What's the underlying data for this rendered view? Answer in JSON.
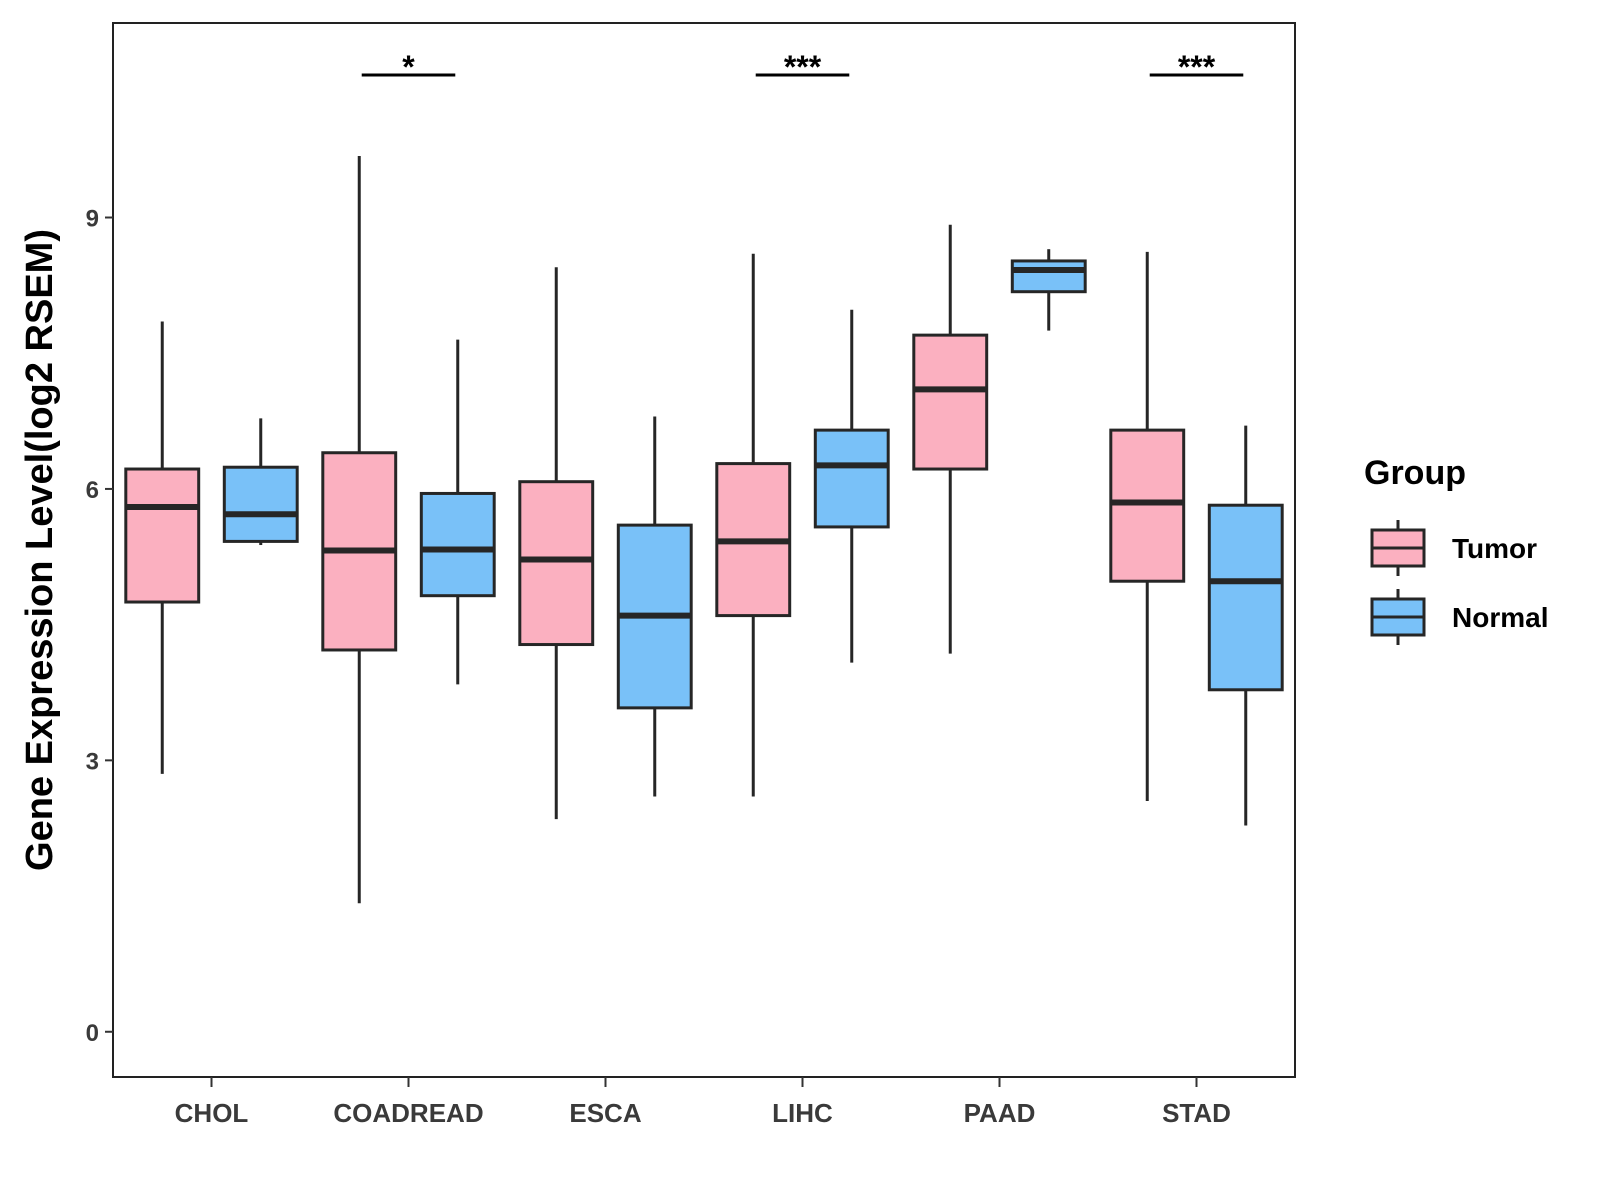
{
  "chart_data": {
    "type": "box",
    "title": "",
    "xlabel": "",
    "ylabel": "Gene Expression Level(log2 RSEM)",
    "ylim": [
      -0.5,
      11.15
    ],
    "yticks": [
      0,
      3,
      6,
      9
    ],
    "categories": [
      "CHOL",
      "COADREAD",
      "ESCA",
      "LIHC",
      "PAAD",
      "STAD"
    ],
    "legend": {
      "title": "Group",
      "position": "right",
      "entries": [
        {
          "name": "Tumor",
          "color": "#fbb0c0"
        },
        {
          "name": "Normal",
          "color": "#79c1f8"
        }
      ]
    },
    "series": [
      {
        "name": "Tumor",
        "color": "#fbb0c0",
        "boxes": [
          {
            "min": 2.85,
            "q1": 4.75,
            "median": 5.8,
            "q3": 6.22,
            "max": 7.85
          },
          {
            "min": 1.42,
            "q1": 4.22,
            "median": 5.32,
            "q3": 6.4,
            "max": 9.68
          },
          {
            "min": 2.35,
            "q1": 4.28,
            "median": 5.22,
            "q3": 6.08,
            "max": 8.45
          },
          {
            "min": 2.6,
            "q1": 4.6,
            "median": 5.42,
            "q3": 6.28,
            "max": 8.6
          },
          {
            "min": 4.18,
            "q1": 6.22,
            "median": 7.1,
            "q3": 7.7,
            "max": 8.92
          },
          {
            "min": 2.55,
            "q1": 4.98,
            "median": 5.85,
            "q3": 6.65,
            "max": 8.62
          }
        ]
      },
      {
        "name": "Normal",
        "color": "#79c1f8",
        "boxes": [
          {
            "min": 5.38,
            "q1": 5.42,
            "median": 5.72,
            "q3": 6.24,
            "max": 6.78
          },
          {
            "min": 3.84,
            "q1": 4.82,
            "median": 5.33,
            "q3": 5.95,
            "max": 7.65
          },
          {
            "min": 2.6,
            "q1": 3.58,
            "median": 4.6,
            "q3": 5.6,
            "max": 6.8
          },
          {
            "min": 4.08,
            "q1": 5.58,
            "median": 6.26,
            "q3": 6.65,
            "max": 7.98
          },
          {
            "min": 7.75,
            "q1": 8.18,
            "median": 8.42,
            "q3": 8.52,
            "max": 8.65
          },
          {
            "min": 2.28,
            "q1": 3.78,
            "median": 4.98,
            "q3": 5.82,
            "max": 6.7
          }
        ]
      }
    ],
    "significance": [
      {
        "category": "COADREAD",
        "label": "*"
      },
      {
        "category": "LIHC",
        "label": "***"
      },
      {
        "category": "STAD",
        "label": "***"
      }
    ],
    "grid": false
  }
}
